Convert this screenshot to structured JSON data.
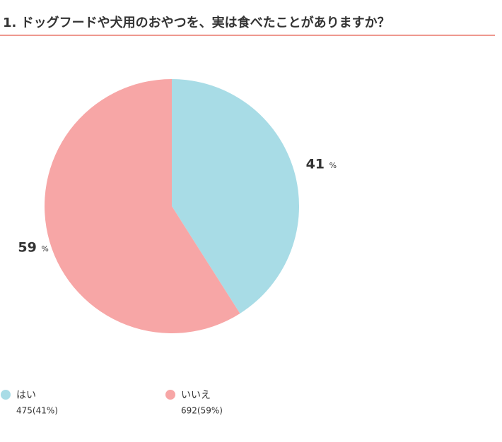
{
  "chart_data": {
    "type": "pie",
    "title": "1. ドッグフードや犬用のおやつを、実は食べたことがありますか？",
    "categories": [
      "はい",
      "いいえ"
    ],
    "values": [
      41,
      59
    ],
    "unit": "%",
    "colors": [
      "#a8dce6",
      "#f7a6a6"
    ],
    "legend_details": [
      "475(41%)",
      "692(59%)"
    ]
  }
}
